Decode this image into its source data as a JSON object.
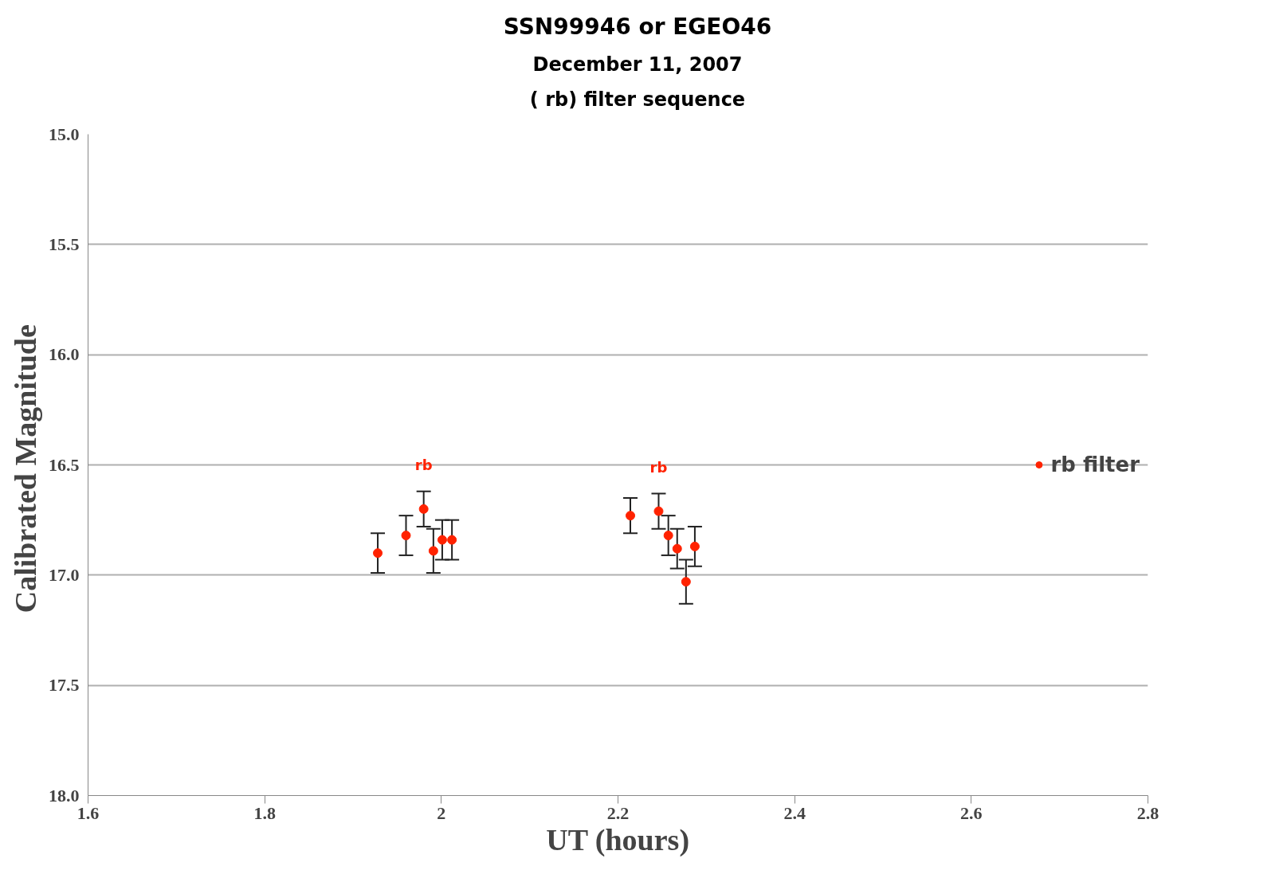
{
  "chart_data": {
    "type": "scatter",
    "title": "SSN99946 or EGEO46",
    "subtitle": "December 11, 2007\n( rb) filter sequence",
    "xlabel": "UT (hours)",
    "ylabel": "Calibrated  Magnitude",
    "x": [
      1.928,
      1.96,
      1.98,
      1.991,
      2.001,
      2.012,
      2.214,
      2.246,
      2.257,
      2.267,
      2.277,
      2.287
    ],
    "series": [
      {
        "name": "rb filter",
        "color": "#ff2200",
        "values": [
          16.9,
          16.82,
          16.7,
          16.89,
          16.84,
          16.84,
          16.73,
          16.71,
          16.82,
          16.88,
          17.03,
          16.87
        ],
        "errors": [
          0.09,
          0.09,
          0.08,
          0.1,
          0.09,
          0.09,
          0.08,
          0.08,
          0.09,
          0.09,
          0.1,
          0.09
        ]
      }
    ],
    "annotations": [
      {
        "text": "rb",
        "x": 1.98,
        "y": 16.7
      },
      {
        "text": "rb",
        "x": 2.246,
        "y": 16.71
      }
    ],
    "xlim": [
      1.6,
      2.8
    ],
    "xticks": [
      1.6,
      1.8,
      2,
      2.2,
      2.4,
      2.6,
      2.8
    ],
    "ylim": [
      18.0,
      15.0
    ],
    "yticks": [
      {
        "value": 15,
        "label": "15.0"
      },
      {
        "value": 15.5,
        "label": "15.5"
      },
      {
        "value": 16,
        "label": "16.0"
      },
      {
        "value": 16.5,
        "label": "16.5"
      },
      {
        "value": 17,
        "label": "17.0"
      },
      {
        "value": 17.5,
        "label": "17.5"
      },
      {
        "value": 18,
        "label": "18.0"
      }
    ],
    "grid": "y",
    "legend": "right",
    "marker": "circle"
  }
}
